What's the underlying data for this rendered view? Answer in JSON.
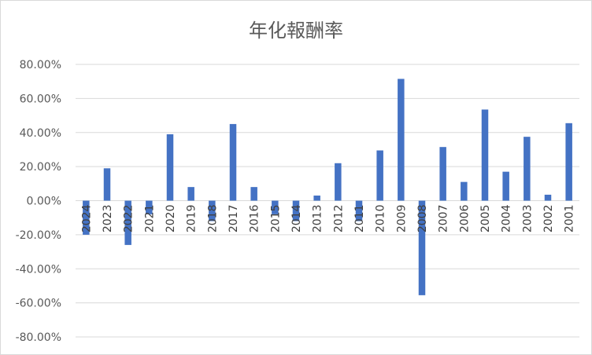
{
  "chart_data": {
    "type": "bar",
    "title": "年化報酬率",
    "categories": [
      "2024",
      "2023",
      "2022",
      "2021",
      "2020",
      "2019",
      "2018",
      "2017",
      "2016",
      "2015",
      "2014",
      "2013",
      "2012",
      "2011",
      "2010",
      "2009",
      "2008",
      "2007",
      "2006",
      "2005",
      "2004",
      "2003",
      "2002",
      "2001"
    ],
    "values": [
      -20,
      19,
      -26,
      -8,
      39,
      8,
      -12,
      45,
      8,
      -8,
      -12,
      3,
      22,
      -12,
      29.5,
      71.5,
      -55.5,
      31.5,
      11,
      53.5,
      17,
      37.5,
      3.5,
      45.5
    ],
    "yticks": [
      "80.00%",
      "60.00%",
      "40.00%",
      "20.00%",
      "0.00%",
      "-20.00%",
      "-40.00%",
      "-60.00%",
      "-80.00%"
    ],
    "ylim": [
      -80,
      80
    ],
    "grid": true,
    "legend": "none",
    "bar_color": "#4472c4"
  }
}
